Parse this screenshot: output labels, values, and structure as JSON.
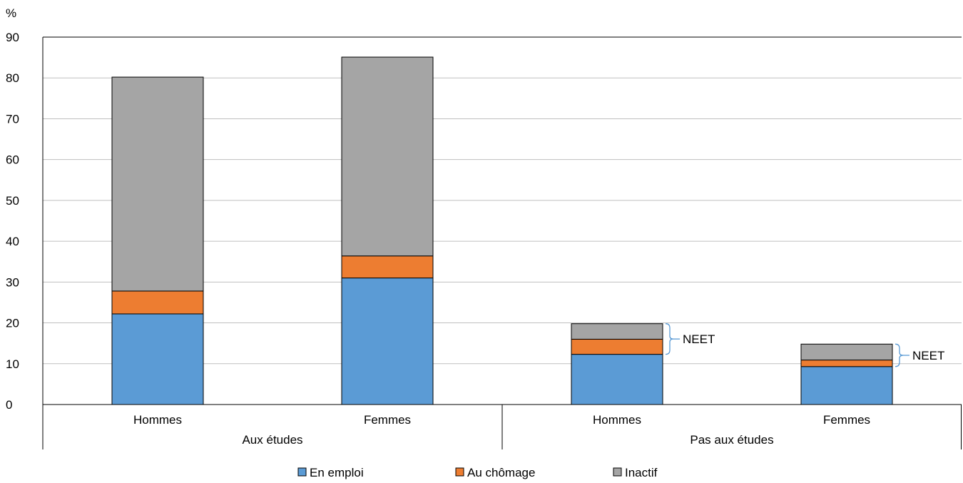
{
  "chart_data": {
    "type": "bar",
    "stacked": true,
    "y_unit_label": "%",
    "ylim": [
      0,
      90
    ],
    "yticks": [
      0,
      10,
      20,
      30,
      40,
      50,
      60,
      70,
      80,
      90
    ],
    "grid": true,
    "legend_position": "bottom",
    "categories": [
      "Hommes",
      "Femmes",
      "Hommes",
      "Femmes"
    ],
    "groups": [
      {
        "label": "Aux études",
        "categories": [
          0,
          1
        ]
      },
      {
        "label": "Pas aux études",
        "categories": [
          2,
          3
        ]
      }
    ],
    "series": [
      {
        "name": "En emploi",
        "color": "#5b9bd5",
        "values": [
          22.2,
          31.0,
          12.3,
          9.3
        ]
      },
      {
        "name": "Au chômage",
        "color": "#ed7d31",
        "values": [
          5.6,
          5.4,
          3.7,
          1.6
        ]
      },
      {
        "name": "Inactif",
        "color": "#a5a5a5",
        "values": [
          52.4,
          48.7,
          3.8,
          3.9
        ]
      }
    ],
    "annotations": [
      {
        "text": "NEET",
        "category": 2,
        "from": 12.3,
        "to": 19.8
      },
      {
        "text": "NEET",
        "category": 3,
        "from": 9.3,
        "to": 14.8
      }
    ]
  }
}
